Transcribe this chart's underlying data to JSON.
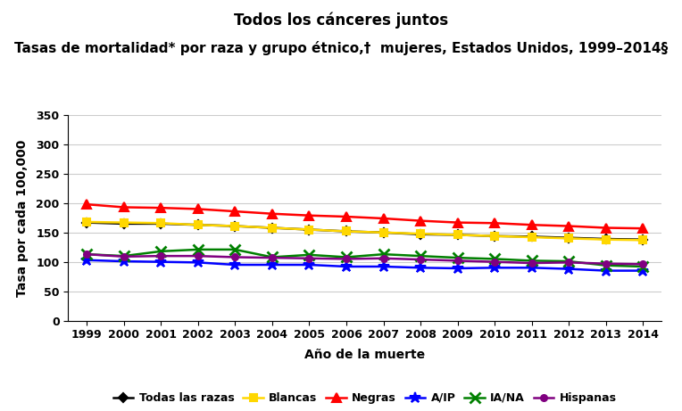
{
  "title_line1": "Todos los cánceres juntos",
  "title_line2": "Tasas de mortalidad* por raza y grupo étnico,†  mujeres, Estados Unidos, 1999–2014§",
  "xlabel": "Año de la muerte",
  "ylabel": "Tasa por cada 100,000",
  "years": [
    1999,
    2000,
    2001,
    2002,
    2003,
    2004,
    2005,
    2006,
    2007,
    2008,
    2009,
    2010,
    2011,
    2012,
    2013,
    2014
  ],
  "ylim": [
    0,
    350
  ],
  "yticks": [
    0,
    50,
    100,
    150,
    200,
    250,
    300,
    350
  ],
  "series": {
    "Todas las razas": {
      "color": "#000000",
      "marker": "D",
      "markersize": 5,
      "linewidth": 1.8,
      "values": [
        167,
        165,
        165,
        163,
        161,
        158,
        155,
        152,
        150,
        147,
        146,
        144,
        143,
        141,
        139,
        138
      ]
    },
    "Blancas": {
      "color": "#FFD700",
      "marker": "s",
      "markersize": 6,
      "linewidth": 1.8,
      "values": [
        168,
        167,
        166,
        163,
        161,
        158,
        155,
        152,
        150,
        148,
        146,
        144,
        142,
        140,
        138,
        137
      ]
    },
    "Negras": {
      "color": "#FF0000",
      "marker": "^",
      "markersize": 7,
      "linewidth": 1.8,
      "values": [
        198,
        193,
        192,
        190,
        186,
        182,
        179,
        177,
        174,
        170,
        167,
        166,
        163,
        161,
        158,
        157
      ]
    },
    "A/IP": {
      "color": "#0000FF",
      "marker": "*",
      "markersize": 9,
      "linewidth": 1.8,
      "values": [
        103,
        101,
        100,
        99,
        95,
        95,
        95,
        92,
        92,
        90,
        89,
        90,
        90,
        88,
        85,
        85
      ]
    },
    "IA/NA": {
      "color": "#008000",
      "marker": "x",
      "markersize": 8,
      "linewidth": 1.8,
      "markeredgewidth": 2,
      "values": [
        113,
        110,
        118,
        121,
        121,
        108,
        112,
        108,
        113,
        110,
        107,
        105,
        102,
        101,
        94,
        92
      ]
    },
    "Hispanas": {
      "color": "#800080",
      "marker": "o",
      "markersize": 5,
      "linewidth": 1.8,
      "values": [
        113,
        109,
        110,
        110,
        108,
        107,
        106,
        105,
        106,
        104,
        102,
        100,
        98,
        99,
        97,
        96
      ]
    }
  },
  "background_color": "#FFFFFF",
  "grid_color": "#CCCCCC",
  "title_fontsize": 12,
  "subtitle_fontsize": 11,
  "label_fontsize": 10,
  "tick_fontsize": 9,
  "legend_fontsize": 9
}
